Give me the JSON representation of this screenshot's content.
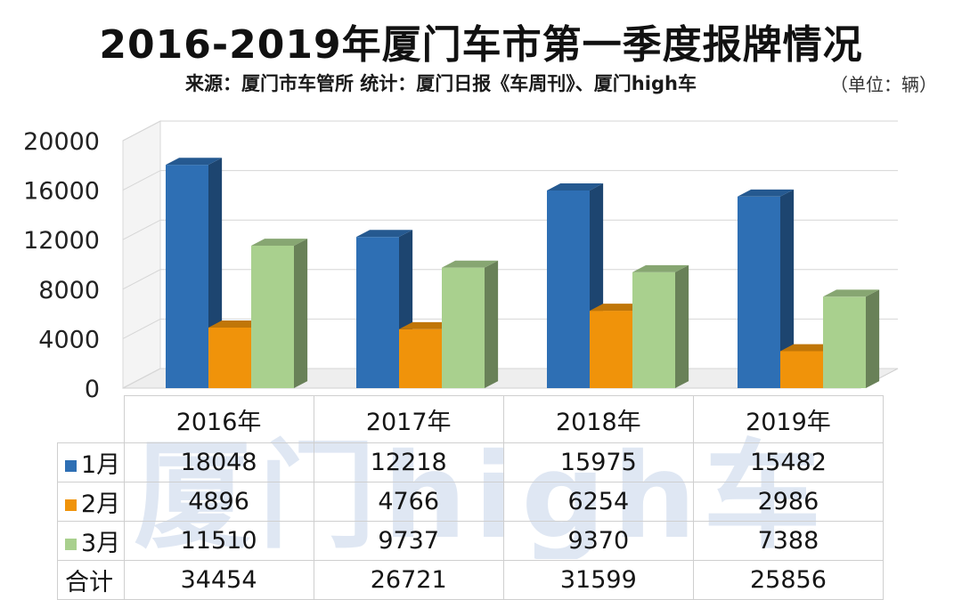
{
  "title": "2016-2019年厦门车市第一季度报牌情况",
  "subtitle": "来源：厦门市车管所 统计：厦门日报《车周刊》、厦门high车",
  "unit": "（单位：辆）",
  "watermark": "厦门high车",
  "chart_data": {
    "type": "bar",
    "style": "3d-clustered-column",
    "categories": [
      "2016年",
      "2017年",
      "2018年",
      "2019年"
    ],
    "series": [
      {
        "name": "1月",
        "values": [
          18048,
          12218,
          15975,
          15482
        ],
        "color": "#2e6fb4"
      },
      {
        "name": "2月",
        "values": [
          4896,
          4766,
          6254,
          2986
        ],
        "color": "#f0930a"
      },
      {
        "name": "3月",
        "values": [
          11510,
          9737,
          9370,
          7388
        ],
        "color": "#a9d08e"
      }
    ],
    "total_label": "合计",
    "totals": [
      34454,
      26721,
      31599,
      25856
    ],
    "yticks": [
      0,
      4000,
      8000,
      12000,
      16000,
      20000
    ],
    "ylim": [
      0,
      20000
    ],
    "grid": true,
    "legend": "data-table"
  }
}
